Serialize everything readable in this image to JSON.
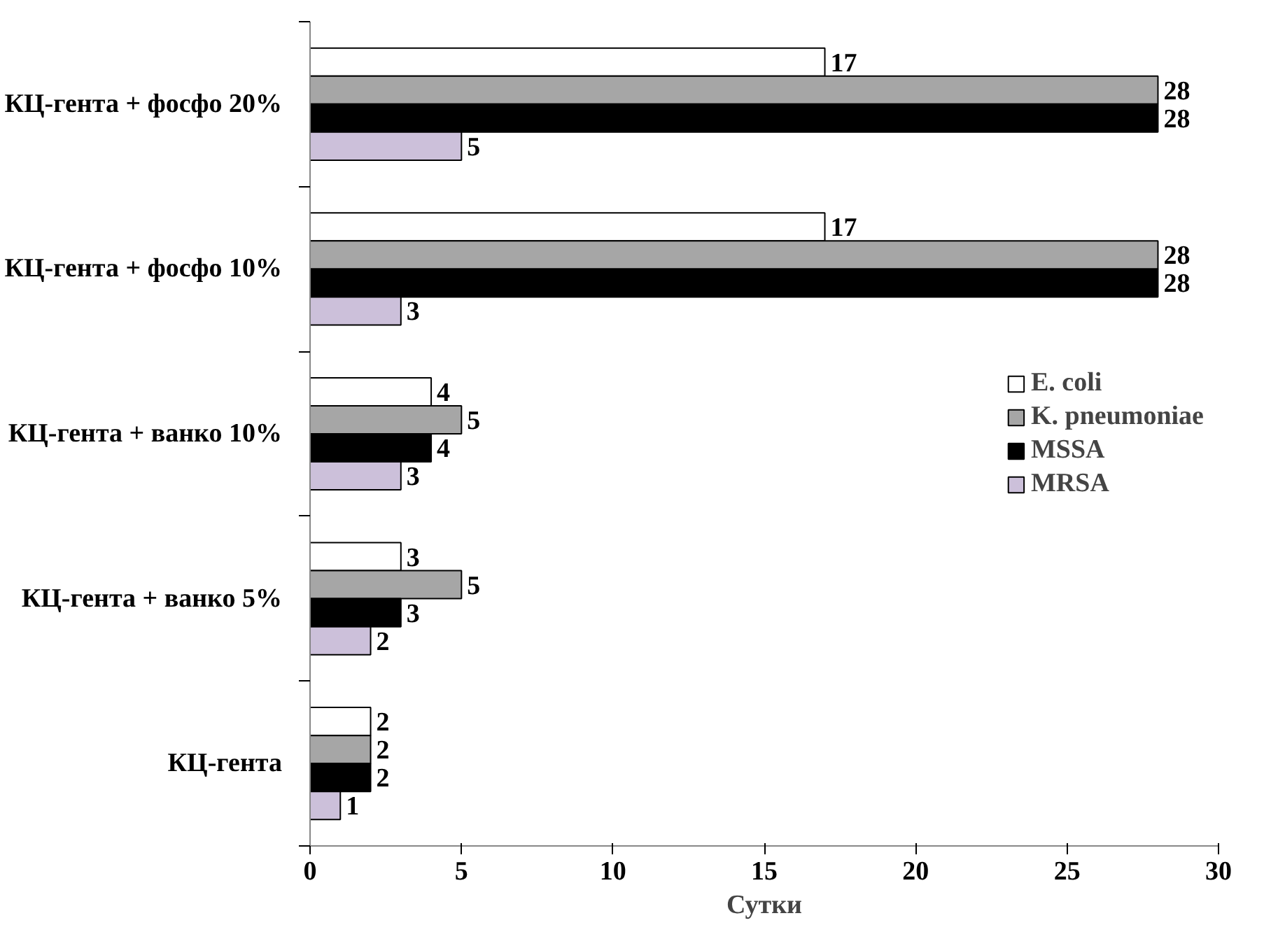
{
  "chart_data": {
    "type": "bar",
    "orientation": "horizontal",
    "xlabel": "Сутки",
    "categories": [
      "КЦ-гента + фосфо 20%",
      "КЦ-гента + фосфо 10%",
      "КЦ-гента + ванко 10%",
      "КЦ-гента + ванко 5%",
      "КЦ-гента"
    ],
    "series": [
      {
        "name": "E. coli",
        "color": "#ffffff",
        "values": [
          17,
          17,
          4,
          3,
          2
        ]
      },
      {
        "name": "K. pneumoniae",
        "color": "#a6a6a6",
        "values": [
          28,
          28,
          5,
          5,
          2
        ]
      },
      {
        "name": "MSSA",
        "color": "#000000",
        "values": [
          28,
          28,
          4,
          3,
          2
        ]
      },
      {
        "name": "MRSA",
        "color": "#ccc0da",
        "values": [
          5,
          3,
          3,
          2,
          1
        ]
      }
    ],
    "xlim": [
      0,
      30
    ],
    "xticks": [
      0,
      5,
      10,
      15,
      20,
      25,
      30
    ],
    "grid": false,
    "legend": "right",
    "data_labels": true
  }
}
